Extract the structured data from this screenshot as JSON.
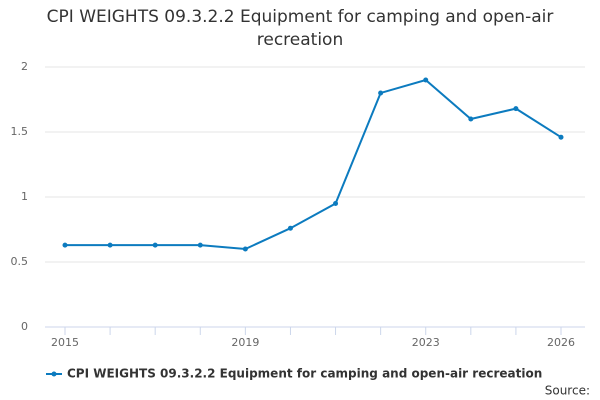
{
  "chart_data": {
    "type": "line",
    "title": "CPI WEIGHTS 09.3.2.2 Equipment for camping and open-air recreation",
    "categories": [
      "2015",
      null,
      null,
      null,
      "2019",
      null,
      null,
      null,
      "2023",
      null,
      null,
      "2026"
    ],
    "series": [
      {
        "name": "CPI WEIGHTS 09.3.2.2 Equipment for camping and open-air recreation",
        "color": "#0c7bbf",
        "values": [
          0.63,
          0.63,
          0.63,
          0.63,
          0.6,
          0.76,
          0.95,
          1.8,
          1.9,
          1.6,
          1.68,
          1.46
        ]
      }
    ],
    "ylim": [
      0,
      2
    ],
    "yticks": [
      0,
      0.5,
      1,
      1.5,
      2
    ],
    "grid": true,
    "source": "Source:"
  }
}
